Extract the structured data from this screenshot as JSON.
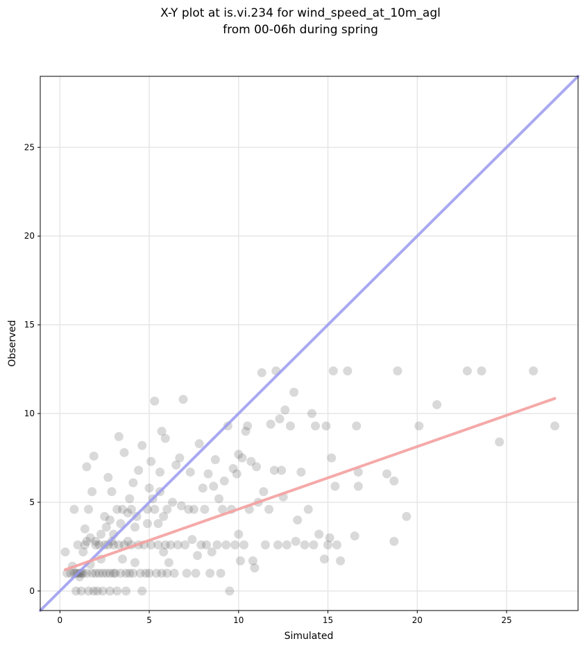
{
  "chart_data": {
    "type": "scatter",
    "title_line1": "X-Y plot at is.vi.234 for wind_speed_at_10m_agl",
    "title_line2": "from 00-06h during spring",
    "xlabel": "Simulated",
    "ylabel": "Observed",
    "xlim": [
      -1.1,
      29.0
    ],
    "ylim": [
      -1.1,
      29.0
    ],
    "xticks": [
      0,
      5,
      10,
      15,
      20,
      25
    ],
    "yticks": [
      0,
      5,
      10,
      15,
      20,
      25
    ],
    "grid": true,
    "point_color": "#404040",
    "one_to_one_line": {
      "x": [
        -1.1,
        29.0
      ],
      "y": [
        -1.1,
        29.0
      ],
      "color": "#9999ee"
    },
    "fit_line": {
      "x": [
        0.3,
        27.7
      ],
      "y": [
        1.2,
        10.85
      ],
      "color": "#f4a0a0"
    },
    "points": [
      [
        0.3,
        2.2
      ],
      [
        0.4,
        1.0
      ],
      [
        0.6,
        1.0
      ],
      [
        0.7,
        1.4
      ],
      [
        0.8,
        1.0
      ],
      [
        0.8,
        4.6
      ],
      [
        0.9,
        1.0
      ],
      [
        0.9,
        0.0
      ],
      [
        1.0,
        2.6
      ],
      [
        1.0,
        1.0
      ],
      [
        1.1,
        1.0
      ],
      [
        1.1,
        0.8
      ],
      [
        1.2,
        1.0
      ],
      [
        1.2,
        0.0
      ],
      [
        1.3,
        1.0
      ],
      [
        1.3,
        2.2
      ],
      [
        1.4,
        2.6
      ],
      [
        1.4,
        3.5
      ],
      [
        1.5,
        1.0
      ],
      [
        1.5,
        7.0
      ],
      [
        1.5,
        2.8
      ],
      [
        1.6,
        4.6
      ],
      [
        1.6,
        0.0
      ],
      [
        1.7,
        1.5
      ],
      [
        1.7,
        3.0
      ],
      [
        1.8,
        5.6
      ],
      [
        1.8,
        1.0
      ],
      [
        1.9,
        7.6
      ],
      [
        1.9,
        0.0
      ],
      [
        2.0,
        2.6
      ],
      [
        2.0,
        1.0
      ],
      [
        2.0,
        2.8
      ],
      [
        2.1,
        0.0
      ],
      [
        2.2,
        1.0
      ],
      [
        2.2,
        2.6
      ],
      [
        2.3,
        3.2
      ],
      [
        2.3,
        1.8
      ],
      [
        2.4,
        1.0
      ],
      [
        2.4,
        0.0
      ],
      [
        2.5,
        4.2
      ],
      [
        2.5,
        2.6
      ],
      [
        2.6,
        1.0
      ],
      [
        2.6,
        3.6
      ],
      [
        2.7,
        6.4
      ],
      [
        2.7,
        2.6
      ],
      [
        2.8,
        1.0
      ],
      [
        2.8,
        4.0
      ],
      [
        2.8,
        0.0
      ],
      [
        2.9,
        5.6
      ],
      [
        2.9,
        2.8
      ],
      [
        3.0,
        1.0
      ],
      [
        3.0,
        3.2
      ],
      [
        3.0,
        2.6
      ],
      [
        3.1,
        1.0
      ],
      [
        3.2,
        4.6
      ],
      [
        3.2,
        0.0
      ],
      [
        3.3,
        8.7
      ],
      [
        3.3,
        2.6
      ],
      [
        3.4,
        1.0
      ],
      [
        3.4,
        3.8
      ],
      [
        3.5,
        1.8
      ],
      [
        3.5,
        4.6
      ],
      [
        3.6,
        7.8
      ],
      [
        3.6,
        2.6
      ],
      [
        3.7,
        1.0
      ],
      [
        3.7,
        0.0
      ],
      [
        3.8,
        4.4
      ],
      [
        3.8,
        2.8
      ],
      [
        3.9,
        5.2
      ],
      [
        3.9,
        1.0
      ],
      [
        4.0,
        2.6
      ],
      [
        4.0,
        4.6
      ],
      [
        4.1,
        6.1
      ],
      [
        4.1,
        1.0
      ],
      [
        4.2,
        3.6
      ],
      [
        4.2,
        1.6
      ],
      [
        4.3,
        4.2
      ],
      [
        4.4,
        2.6
      ],
      [
        4.4,
        6.8
      ],
      [
        4.5,
        1.0
      ],
      [
        4.6,
        8.2
      ],
      [
        4.6,
        0.0
      ],
      [
        4.7,
        2.6
      ],
      [
        4.8,
        1.0
      ],
      [
        4.9,
        4.6
      ],
      [
        4.9,
        3.8
      ],
      [
        5.0,
        1.0
      ],
      [
        5.0,
        5.8
      ],
      [
        5.1,
        7.3
      ],
      [
        5.1,
        2.6
      ],
      [
        5.2,
        5.2
      ],
      [
        5.3,
        4.6
      ],
      [
        5.3,
        10.7
      ],
      [
        5.4,
        1.0
      ],
      [
        5.5,
        2.6
      ],
      [
        5.5,
        3.8
      ],
      [
        5.6,
        6.7
      ],
      [
        5.6,
        5.6
      ],
      [
        5.7,
        1.0
      ],
      [
        5.7,
        9.0
      ],
      [
        5.8,
        4.2
      ],
      [
        5.8,
        2.2
      ],
      [
        5.9,
        2.6
      ],
      [
        5.9,
        8.6
      ],
      [
        6.0,
        1.0
      ],
      [
        6.0,
        4.6
      ],
      [
        6.1,
        1.6
      ],
      [
        6.2,
        2.6
      ],
      [
        6.3,
        5.0
      ],
      [
        6.4,
        1.0
      ],
      [
        6.5,
        7.1
      ],
      [
        6.6,
        2.6
      ],
      [
        6.7,
        7.5
      ],
      [
        6.8,
        4.8
      ],
      [
        6.9,
        10.8
      ],
      [
        7.0,
        2.6
      ],
      [
        7.1,
        1.0
      ],
      [
        7.2,
        4.6
      ],
      [
        7.3,
        6.7
      ],
      [
        7.4,
        2.9
      ],
      [
        7.5,
        4.6
      ],
      [
        7.6,
        1.0
      ],
      [
        7.7,
        2.0
      ],
      [
        7.8,
        8.3
      ],
      [
        7.9,
        2.6
      ],
      [
        8.0,
        5.8
      ],
      [
        8.1,
        4.6
      ],
      [
        8.2,
        2.6
      ],
      [
        8.3,
        6.6
      ],
      [
        8.4,
        1.0
      ],
      [
        8.5,
        2.2
      ],
      [
        8.6,
        5.9
      ],
      [
        8.7,
        7.4
      ],
      [
        8.8,
        2.6
      ],
      [
        8.9,
        5.2
      ],
      [
        9.0,
        1.0
      ],
      [
        9.1,
        4.6
      ],
      [
        9.2,
        6.2
      ],
      [
        9.3,
        2.6
      ],
      [
        9.4,
        9.3
      ],
      [
        9.5,
        0.0
      ],
      [
        9.6,
        4.6
      ],
      [
        9.7,
        6.9
      ],
      [
        9.8,
        2.6
      ],
      [
        9.9,
        6.6
      ],
      [
        10.0,
        3.2
      ],
      [
        10.0,
        7.7
      ],
      [
        10.1,
        1.7
      ],
      [
        10.2,
        7.5
      ],
      [
        10.3,
        2.6
      ],
      [
        10.4,
        9.0
      ],
      [
        10.5,
        9.3
      ],
      [
        10.6,
        4.6
      ],
      [
        10.7,
        7.3
      ],
      [
        10.8,
        1.7
      ],
      [
        10.9,
        1.3
      ],
      [
        11.0,
        7.0
      ],
      [
        11.1,
        5.0
      ],
      [
        11.3,
        12.3
      ],
      [
        11.4,
        5.6
      ],
      [
        11.5,
        2.6
      ],
      [
        11.7,
        4.6
      ],
      [
        11.8,
        9.4
      ],
      [
        12.0,
        6.8
      ],
      [
        12.1,
        12.4
      ],
      [
        12.2,
        2.6
      ],
      [
        12.3,
        9.7
      ],
      [
        12.4,
        6.8
      ],
      [
        12.5,
        5.3
      ],
      [
        12.6,
        10.2
      ],
      [
        12.7,
        2.6
      ],
      [
        12.9,
        9.3
      ],
      [
        13.1,
        11.2
      ],
      [
        13.2,
        2.8
      ],
      [
        13.3,
        4.0
      ],
      [
        13.5,
        6.7
      ],
      [
        13.7,
        2.6
      ],
      [
        13.9,
        4.6
      ],
      [
        14.1,
        10.0
      ],
      [
        14.2,
        2.6
      ],
      [
        14.3,
        9.3
      ],
      [
        14.5,
        3.2
      ],
      [
        14.8,
        1.8
      ],
      [
        14.9,
        9.3
      ],
      [
        15.0,
        2.6
      ],
      [
        15.1,
        3.0
      ],
      [
        15.2,
        7.5
      ],
      [
        15.3,
        12.4
      ],
      [
        15.4,
        5.9
      ],
      [
        15.5,
        2.6
      ],
      [
        15.7,
        1.7
      ],
      [
        16.1,
        12.4
      ],
      [
        16.5,
        3.1
      ],
      [
        16.6,
        9.3
      ],
      [
        16.7,
        6.7
      ],
      [
        16.7,
        5.9
      ],
      [
        18.3,
        6.6
      ],
      [
        18.7,
        6.2
      ],
      [
        18.7,
        2.8
      ],
      [
        18.9,
        12.4
      ],
      [
        19.4,
        4.2
      ],
      [
        20.1,
        9.3
      ],
      [
        21.1,
        10.5
      ],
      [
        22.8,
        12.4
      ],
      [
        23.6,
        12.4
      ],
      [
        24.6,
        8.4
      ],
      [
        26.5,
        12.4
      ],
      [
        27.7,
        9.3
      ]
    ]
  }
}
